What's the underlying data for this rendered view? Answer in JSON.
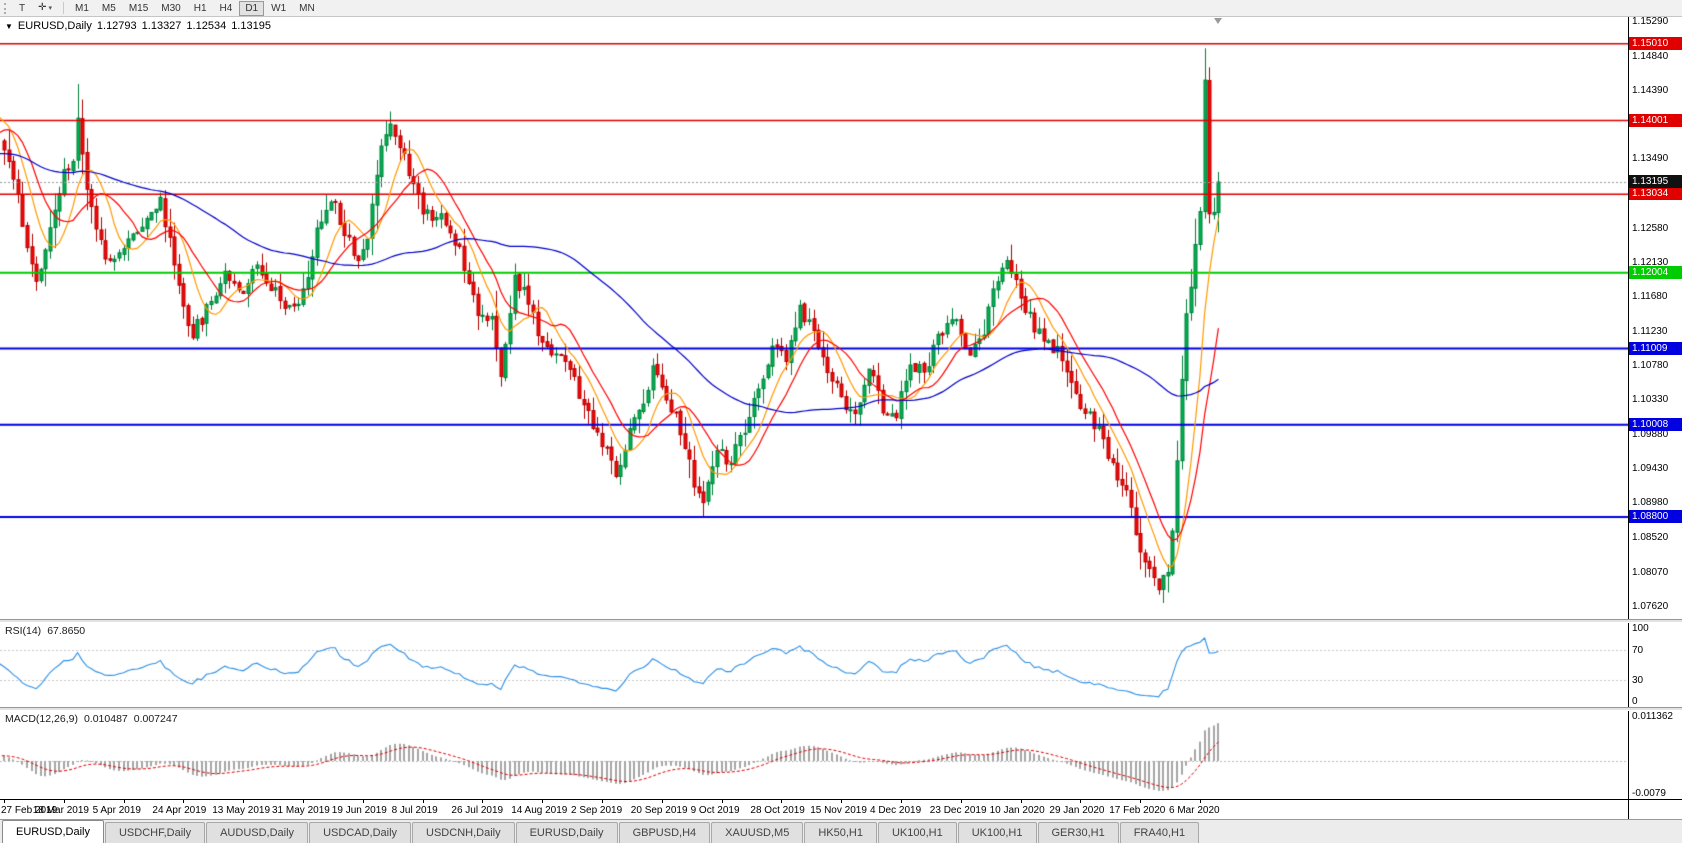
{
  "toolbar": {
    "text_tool": "T",
    "crosshair_icon": "✛",
    "caret_icon": "▾",
    "timeframes": [
      {
        "label": "M1",
        "active": false
      },
      {
        "label": "M5",
        "active": false
      },
      {
        "label": "M15",
        "active": false
      },
      {
        "label": "M30",
        "active": false
      },
      {
        "label": "H1",
        "active": false
      },
      {
        "label": "H4",
        "active": false
      },
      {
        "label": "D1",
        "active": true
      },
      {
        "label": "W1",
        "active": false
      },
      {
        "label": "MN",
        "active": false
      }
    ]
  },
  "chart": {
    "title": {
      "expander": "▼",
      "symbol": "EURUSD,Daily",
      "open": "1.12793",
      "high": "1.13327",
      "low": "1.12534",
      "close": "1.13195"
    },
    "price_axis_labels": [
      "1.15290",
      "1.14840",
      "1.14390",
      "1.13940",
      "1.13490",
      "1.13040",
      "1.12580",
      "1.12130",
      "1.11680",
      "1.11230",
      "1.10780",
      "1.10330",
      "1.09880",
      "1.09430",
      "1.08980",
      "1.08520",
      "1.08070",
      "1.07620"
    ],
    "current_price": {
      "label": "1.13195",
      "value": 1.13195,
      "badge_color": "#111111"
    },
    "time_axis_labels": [
      "27 Feb 2019",
      "18 Mar 2019",
      "5 Apr 2019",
      "24 Apr 2019",
      "13 May 2019",
      "31 May 2019",
      "19 Jun 2019",
      "8 Jul 2019",
      "26 Jul 2019",
      "14 Aug 2019",
      "2 Sep 2019",
      "20 Sep 2019",
      "9 Oct 2019",
      "28 Oct 2019",
      "15 Nov 2019",
      "4 Dec 2019",
      "23 Dec 2019",
      "10 Jan 2020",
      "29 Jan 2020",
      "17 Feb 2020",
      "6 Mar 2020"
    ]
  },
  "indicators": {
    "rsi": {
      "label": "RSI(14)",
      "value_text": "67.8650",
      "axis_labels": [
        "100",
        "70",
        "30",
        "0"
      ]
    },
    "macd": {
      "label": "MACD(12,26,9)",
      "main_value_text": "0.010487",
      "signal_value_text": "0.007247",
      "axis_top_label": "0.011362",
      "axis_bottom_label": "-0.0079"
    }
  },
  "tabs": [
    {
      "label": "EURUSD,Daily",
      "active": true
    },
    {
      "label": "USDCHF,Daily",
      "active": false
    },
    {
      "label": "AUDUSD,Daily",
      "active": false
    },
    {
      "label": "USDCAD,Daily",
      "active": false
    },
    {
      "label": "USDCNH,Daily",
      "active": false
    },
    {
      "label": "EURUSD,Daily",
      "active": false
    },
    {
      "label": "GBPUSD,H4",
      "active": false
    },
    {
      "label": "XAUUSD,M5",
      "active": false
    },
    {
      "label": "HK50,H1",
      "active": false
    },
    {
      "label": "UK100,H1",
      "active": false
    },
    {
      "label": "UK100,H1",
      "active": false
    },
    {
      "label": "GER30,H1",
      "active": false
    },
    {
      "label": "FRA40,H1",
      "active": false
    }
  ],
  "colors": {
    "up_fill": "#00b050",
    "up_border": "#00803c",
    "down_fill": "#f50808",
    "down_border": "#b40000",
    "ma_fast": "#ff9900",
    "ma_medium": "#ff0000",
    "ma_slow": "#0000c8",
    "rsi_line": "#2e90e6",
    "macd_hist": "#a6a6a6",
    "macd_signal": "#e00000",
    "level_red": "#e00000",
    "level_green": "#00cc00",
    "level_blue": "#0000e0",
    "current_price_line": "#9a9a9a"
  },
  "chart_data": {
    "type": "candlestick",
    "symbol": "EURUSD",
    "period": "Daily",
    "visible_candles": 265,
    "candles_per_time_label": 13,
    "price_axis_range": [
      1.0746,
      1.1536
    ],
    "last_candle_ohlc": {
      "open": 1.12793,
      "high": 1.13327,
      "low": 1.12534,
      "close": 1.13195
    },
    "levels": [
      {
        "label": "1.15010",
        "value": 1.1501,
        "color": "#e00000",
        "width": 1.5
      },
      {
        "label": "1.14001",
        "value": 1.14001,
        "color": "#e00000",
        "width": 1.5
      },
      {
        "label": "1.13034",
        "value": 1.13034,
        "color": "#e00000",
        "width": 1.5
      },
      {
        "label": "1.12004",
        "value": 1.12004,
        "color": "#00cc00",
        "width": 2
      },
      {
        "label": "1.11009",
        "value": 1.11009,
        "color": "#0000e0",
        "width": 2
      },
      {
        "label": "1.10008",
        "value": 1.10008,
        "color": "#0000e0",
        "width": 2
      },
      {
        "label": "1.08800",
        "value": 1.088,
        "color": "#0000e0",
        "width": 2
      }
    ],
    "moving_averages": [
      {
        "name": "fast",
        "period": 8,
        "color": "#ff9900"
      },
      {
        "name": "medium",
        "period": 13,
        "color": "#ff0000"
      },
      {
        "name": "slow",
        "period": 55,
        "color": "#0000c8"
      }
    ],
    "close_path_anchors": [
      [
        -60,
        1.1335
      ],
      [
        -48,
        1.1388
      ],
      [
        -36,
        1.1322
      ],
      [
        -24,
        1.1356
      ],
      [
        -14,
        1.1312
      ],
      [
        -8,
        1.1398
      ],
      [
        -4,
        1.1424
      ],
      [
        -1,
        1.1378
      ],
      [
        0,
        1.1368
      ],
      [
        2,
        1.1322
      ],
      [
        4,
        1.1268
      ],
      [
        7,
        1.1186
      ],
      [
        10,
        1.1252
      ],
      [
        13,
        1.1332
      ],
      [
        15,
        1.1342
      ],
      [
        16,
        1.1412
      ],
      [
        18,
        1.1308
      ],
      [
        22,
        1.1222
      ],
      [
        26,
        1.123
      ],
      [
        30,
        1.1268
      ],
      [
        34,
        1.1292
      ],
      [
        36,
        1.1242
      ],
      [
        39,
        1.1158
      ],
      [
        41,
        1.112
      ],
      [
        44,
        1.1152
      ],
      [
        48,
        1.1202
      ],
      [
        52,
        1.1178
      ],
      [
        55,
        1.1212
      ],
      [
        58,
        1.1186
      ],
      [
        62,
        1.1152
      ],
      [
        65,
        1.1172
      ],
      [
        68,
        1.1252
      ],
      [
        71,
        1.1302
      ],
      [
        74,
        1.1258
      ],
      [
        77,
        1.1218
      ],
      [
        79,
        1.1244
      ],
      [
        82,
        1.1372
      ],
      [
        84,
        1.1398
      ],
      [
        86,
        1.137
      ],
      [
        88,
        1.1332
      ],
      [
        91,
        1.1284
      ],
      [
        95,
        1.1272
      ],
      [
        99,
        1.1232
      ],
      [
        103,
        1.1152
      ],
      [
        106,
        1.1138
      ],
      [
        108,
        1.1058
      ],
      [
        111,
        1.1196
      ],
      [
        114,
        1.1162
      ],
      [
        117,
        1.1102
      ],
      [
        121,
        1.1096
      ],
      [
        125,
        1.1042
      ],
      [
        128,
        1.0996
      ],
      [
        130,
        1.0978
      ],
      [
        133,
        1.0932
      ],
      [
        136,
        1.0994
      ],
      [
        139,
        1.1034
      ],
      [
        141,
        1.1072
      ],
      [
        144,
        1.1042
      ],
      [
        147,
        1.0994
      ],
      [
        150,
        1.0924
      ],
      [
        152,
        1.0898
      ],
      [
        155,
        1.0964
      ],
      [
        158,
        1.0954
      ],
      [
        161,
        1.0992
      ],
      [
        164,
        1.1044
      ],
      [
        167,
        1.1104
      ],
      [
        170,
        1.1084
      ],
      [
        173,
        1.1152
      ],
      [
        176,
        1.1124
      ],
      [
        179,
        1.1074
      ],
      [
        182,
        1.1038
      ],
      [
        185,
        1.1008
      ],
      [
        188,
        1.1074
      ],
      [
        191,
        1.1024
      ],
      [
        194,
        1.1014
      ],
      [
        197,
        1.1084
      ],
      [
        200,
        1.1068
      ],
      [
        203,
        1.1114
      ],
      [
        207,
        1.114
      ],
      [
        210,
        1.1094
      ],
      [
        213,
        1.1124
      ],
      [
        216,
        1.1194
      ],
      [
        218,
        1.122
      ],
      [
        221,
        1.1164
      ],
      [
        224,
        1.113
      ],
      [
        227,
        1.1108
      ],
      [
        230,
        1.1088
      ],
      [
        233,
        1.1034
      ],
      [
        236,
        1.1016
      ],
      [
        239,
        1.0982
      ],
      [
        241,
        1.0948
      ],
      [
        244,
        1.0908
      ],
      [
        247,
        1.0842
      ],
      [
        249,
        1.0806
      ],
      [
        251,
        1.0788
      ],
      [
        253,
        1.0814
      ],
      [
        254,
        1.0854
      ],
      [
        255,
        1.096
      ],
      [
        256,
        1.106
      ],
      [
        257,
        1.114
      ],
      [
        258,
        1.118
      ],
      [
        259,
        1.124
      ],
      [
        260,
        1.1286
      ],
      [
        261,
        1.145
      ],
      [
        262,
        1.1284
      ],
      [
        263,
        1.1272
      ],
      [
        264,
        1.13195
      ]
    ],
    "overrides": {
      "16": {
        "h": 1.1448
      },
      "84": {
        "h": 1.1412
      },
      "152": {
        "l": 1.0879
      },
      "251": {
        "l": 1.0778
      },
      "261": {
        "h": 1.1495
      },
      "264": {
        "o": 1.12793,
        "h": 1.13327,
        "l": 1.12534,
        "c": 1.13195
      }
    },
    "rsi": {
      "period": 14,
      "current": 67.865,
      "levels": [
        70,
        30
      ],
      "range": [
        0,
        100
      ]
    },
    "macd": {
      "fast": 12,
      "slow": 26,
      "signal_period": 9,
      "current_main": 0.010487,
      "current_signal": 0.007247,
      "display_range": [
        -0.0095,
        0.0125
      ]
    }
  }
}
